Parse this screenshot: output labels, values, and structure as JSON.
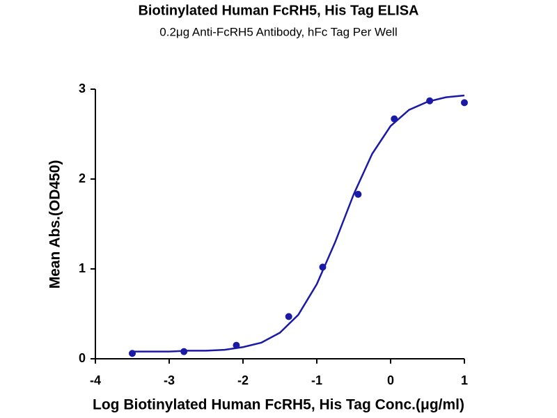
{
  "chart_data": {
    "type": "scatter",
    "title": "Biotinylated Human FcRH5, His Tag ELISA",
    "subtitle": "0.2μg Anti-FcRH5 Antibody, hFc Tag Per Well",
    "x_label": "Log Biotinylated Human FcRH5, His Tag Conc.(μg/ml)",
    "y_label": "Mean Abs.(OD450)",
    "color": "#1a1aa6",
    "points": {
      "x": [
        -3.5,
        -2.8,
        -2.09,
        -1.38,
        -0.92,
        -0.44,
        0.05,
        0.53,
        1.0
      ],
      "y": [
        0.06,
        0.08,
        0.15,
        0.47,
        1.02,
        1.83,
        2.67,
        2.87,
        2.85
      ]
    },
    "curve": {
      "x": [
        -3.5,
        -3.25,
        -3,
        -2.75,
        -2.5,
        -2.25,
        -2,
        -1.75,
        -1.5,
        -1.25,
        -1,
        -0.75,
        -0.5,
        -0.25,
        0,
        0.25,
        0.5,
        0.75,
        1
      ],
      "y": [
        0.08,
        0.08,
        0.08,
        0.09,
        0.09,
        0.1,
        0.13,
        0.18,
        0.29,
        0.49,
        0.83,
        1.3,
        1.83,
        2.28,
        2.59,
        2.77,
        2.86,
        2.91,
        2.93
      ]
    },
    "xlim": [
      -4,
      1
    ],
    "xticks": [
      -4,
      -3,
      -2,
      -1,
      0,
      1
    ],
    "ylim": [
      0,
      3
    ],
    "yticks": [
      0,
      1,
      2,
      3
    ]
  }
}
